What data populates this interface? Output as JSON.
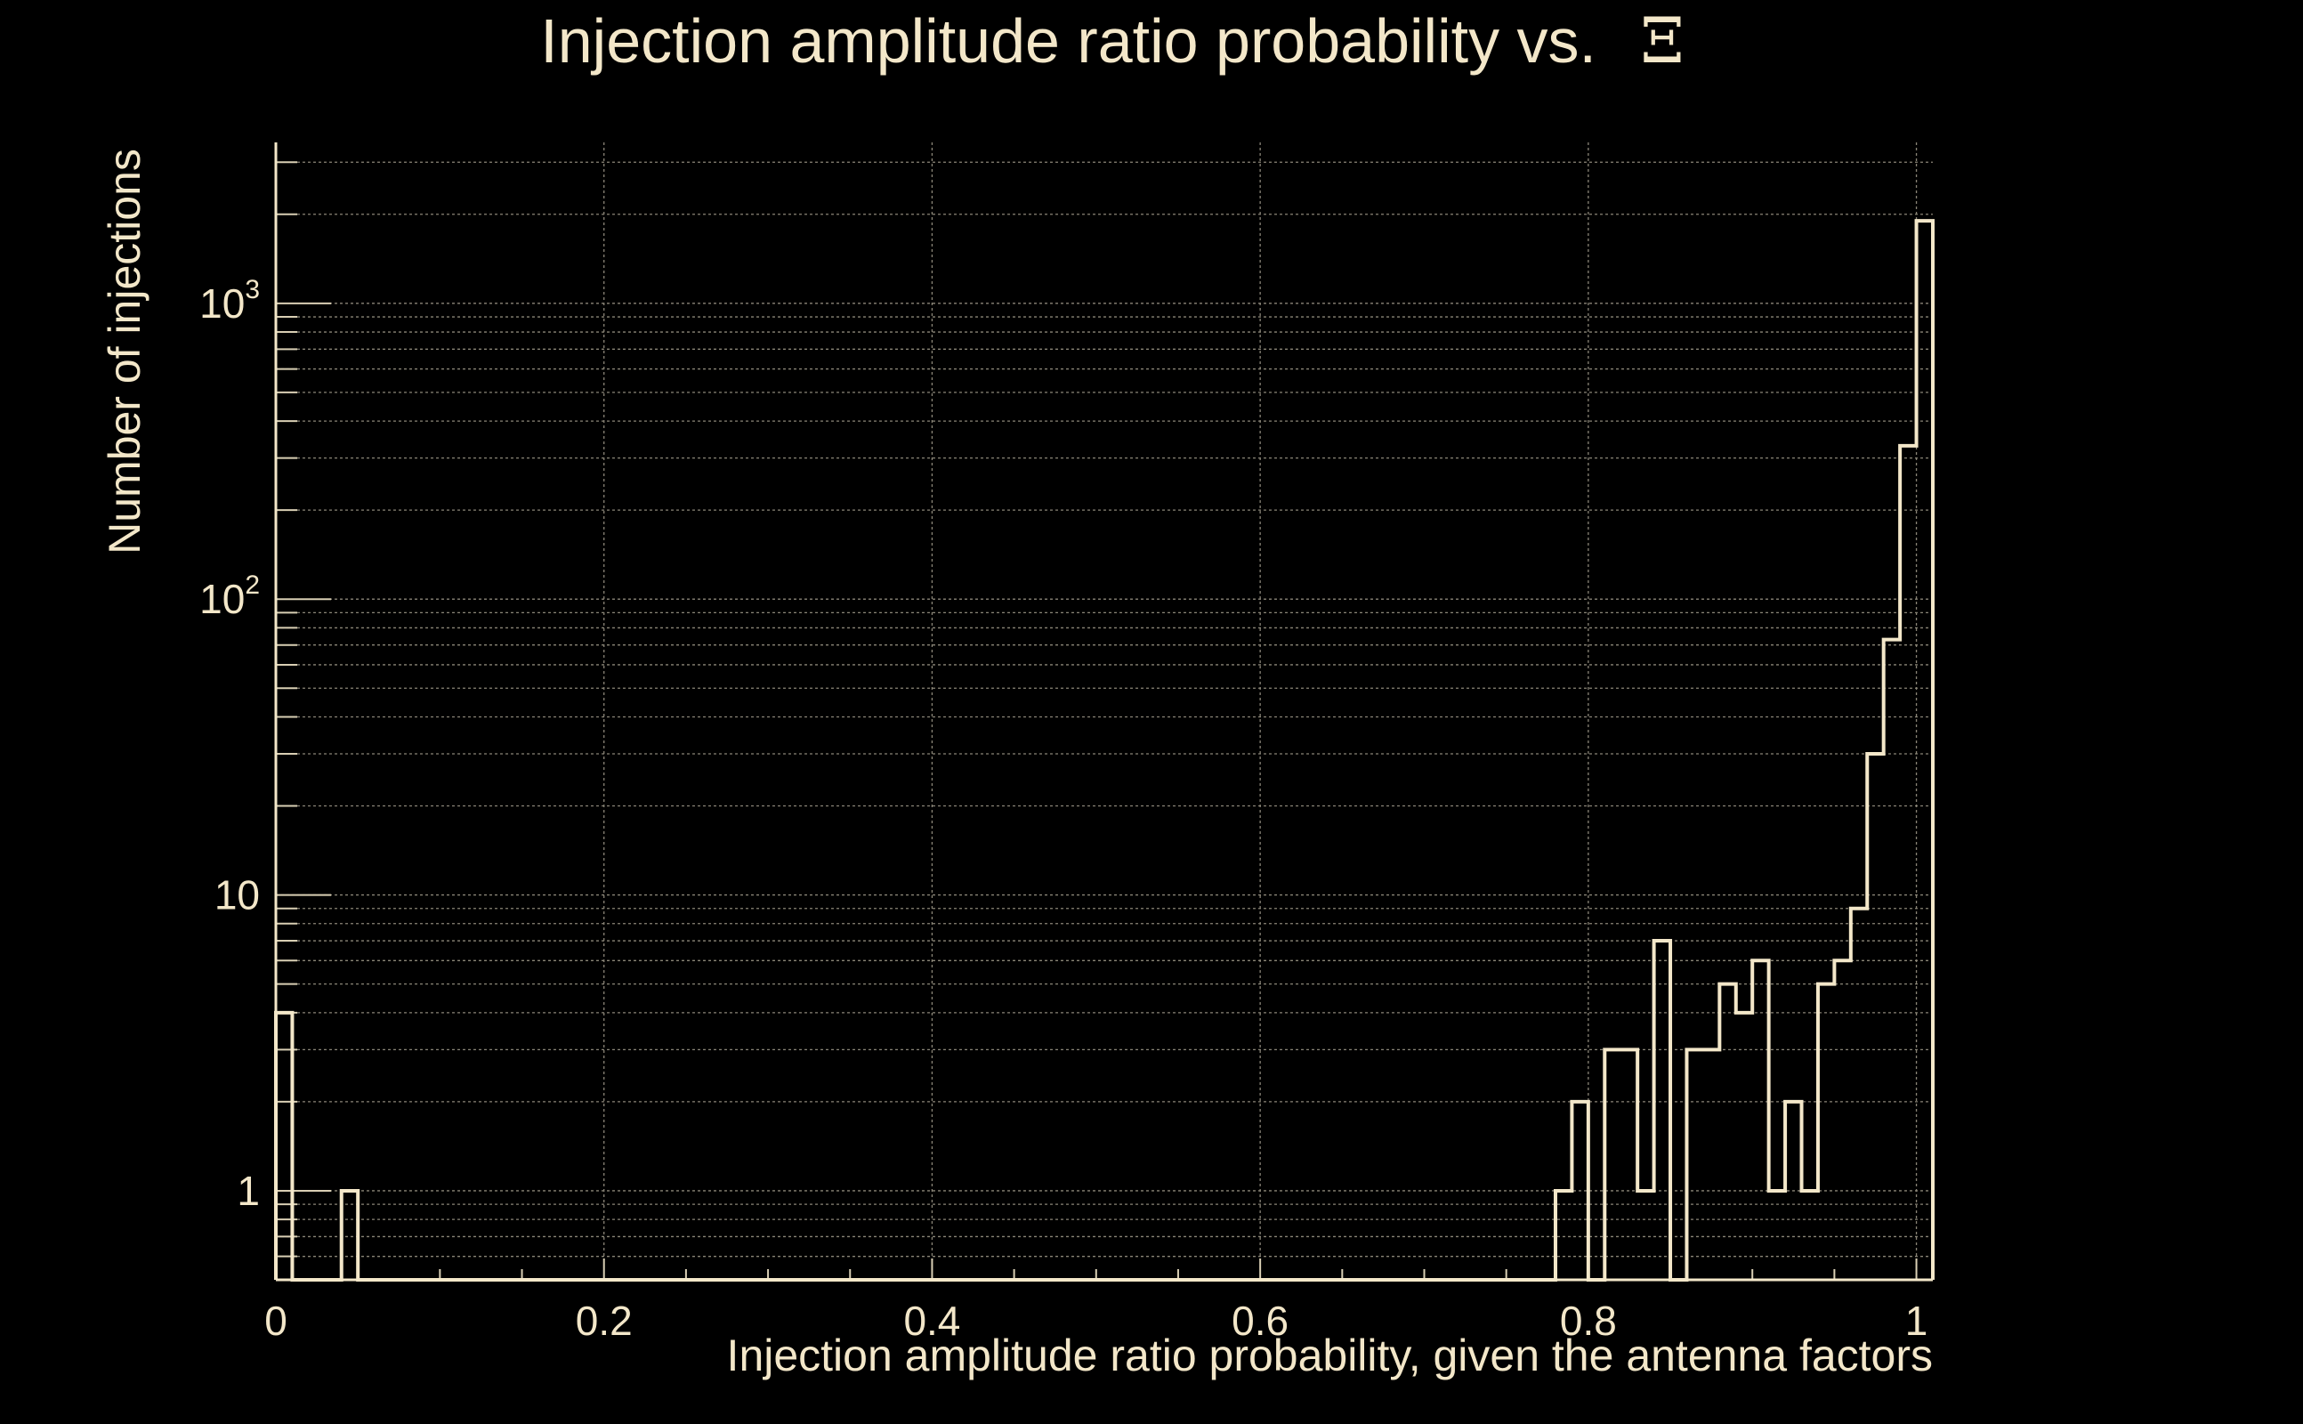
{
  "chart_data": {
    "type": "bar",
    "title": "Injection amplitude ratio probability vs.",
    "title_symbol": "Ξ",
    "xlabel": "Injection amplitude ratio probability, given the antenna factors",
    "ylabel": "Number of injections",
    "xlim": [
      0,
      1.01
    ],
    "ylim": [
      0.5,
      3500
    ],
    "yscale": "log",
    "grid": true,
    "x_ticks": [
      0,
      0.2,
      0.4,
      0.6,
      0.8,
      1
    ],
    "x_tick_labels": [
      "0",
      "0.2",
      "0.4",
      "0.6",
      "0.8",
      "1"
    ],
    "y_ticks": [
      {
        "value": 1,
        "base": "1",
        "exp": ""
      },
      {
        "value": 10,
        "base": "10",
        "exp": ""
      },
      {
        "value": 100,
        "base": "10",
        "exp": "2"
      },
      {
        "value": 1000,
        "base": "10",
        "exp": "3"
      }
    ],
    "bin_width": 0.01,
    "bins": [
      {
        "x": 0.0,
        "count": 4
      },
      {
        "x": 0.04,
        "count": 1
      },
      {
        "x": 0.78,
        "count": 1
      },
      {
        "x": 0.79,
        "count": 2
      },
      {
        "x": 0.81,
        "count": 3
      },
      {
        "x": 0.82,
        "count": 3
      },
      {
        "x": 0.83,
        "count": 1
      },
      {
        "x": 0.84,
        "count": 7
      },
      {
        "x": 0.86,
        "count": 3
      },
      {
        "x": 0.87,
        "count": 3
      },
      {
        "x": 0.88,
        "count": 5
      },
      {
        "x": 0.89,
        "count": 4
      },
      {
        "x": 0.9,
        "count": 6
      },
      {
        "x": 0.91,
        "count": 1
      },
      {
        "x": 0.92,
        "count": 2
      },
      {
        "x": 0.93,
        "count": 1
      },
      {
        "x": 0.94,
        "count": 5
      },
      {
        "x": 0.95,
        "count": 6
      },
      {
        "x": 0.96,
        "count": 9
      },
      {
        "x": 0.97,
        "count": 30
      },
      {
        "x": 0.98,
        "count": 73
      },
      {
        "x": 0.99,
        "count": 330
      },
      {
        "x": 1.0,
        "count": 1900
      }
    ]
  }
}
